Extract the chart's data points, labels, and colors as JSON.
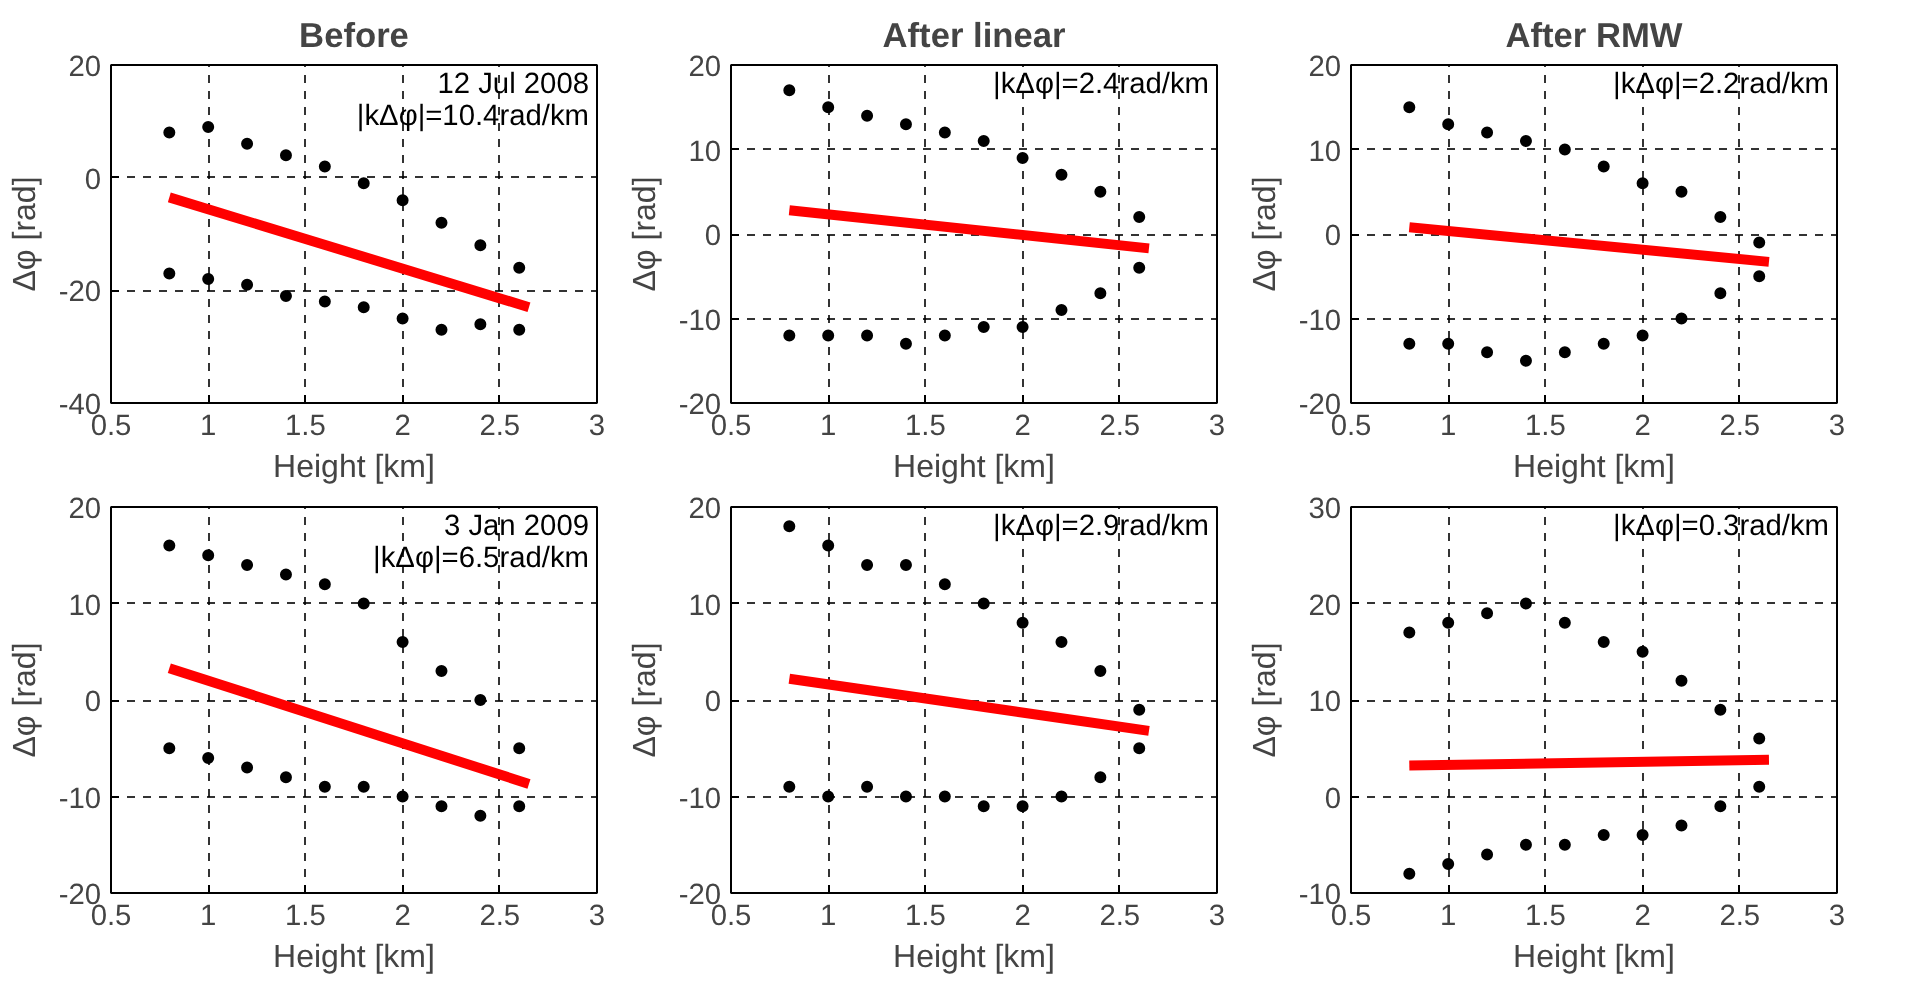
{
  "chart_data": [
    {
      "type": "scatter",
      "title": "Before",
      "xlabel": "Height [km]",
      "ylabel": "Δφ [rad]",
      "xlim": [
        0.5,
        3
      ],
      "xticks": [
        0.5,
        1,
        1.5,
        2,
        2.5,
        3
      ],
      "ylim": [
        -40,
        20
      ],
      "yticks": [
        -40,
        -20,
        0,
        20
      ],
      "grid": true,
      "annotations": [
        "12 Jul 2008",
        "|kΔφ|=10.4rad/km"
      ],
      "series": [
        {
          "marker": "circle",
          "color": "#000000",
          "x": [
            0.8,
            1.0,
            1.2,
            1.4,
            1.6,
            1.8,
            2.0,
            2.2,
            2.4,
            2.6,
            0.8,
            1.0,
            1.2,
            1.4,
            1.6,
            1.8,
            2.0,
            2.2,
            2.4,
            2.6
          ],
          "values": [
            8,
            9,
            6,
            4,
            2,
            -1,
            -4,
            -8,
            -12,
            -16,
            -17,
            -18,
            -19,
            -21,
            -22,
            -23,
            -25,
            -27,
            -26,
            -27
          ]
        },
        {
          "type": "line",
          "color": "#ff0000",
          "x": [
            0.8,
            2.65
          ],
          "values": [
            -3.5,
            -23
          ]
        }
      ]
    },
    {
      "type": "scatter",
      "title": "After linear",
      "xlabel": "Height [km]",
      "ylabel": "Δφ [rad]",
      "xlim": [
        0.5,
        3
      ],
      "xticks": [
        0.5,
        1,
        1.5,
        2,
        2.5,
        3
      ],
      "ylim": [
        -20,
        20
      ],
      "yticks": [
        -20,
        -10,
        0,
        10,
        20
      ],
      "grid": true,
      "annotations": [
        "|kΔφ|=2.4rad/km"
      ],
      "series": [
        {
          "marker": "circle",
          "color": "#000000",
          "x": [
            0.8,
            1.0,
            1.2,
            1.4,
            1.6,
            1.8,
            2.0,
            2.2,
            2.4,
            2.6,
            0.8,
            1.0,
            1.2,
            1.4,
            1.6,
            1.8,
            2.0,
            2.2,
            2.4,
            2.6
          ],
          "values": [
            17,
            15,
            14,
            13,
            12,
            11,
            9,
            7,
            5,
            2,
            -12,
            -12,
            -12,
            -13,
            -12,
            -11,
            -11,
            -9,
            -7,
            -4
          ]
        },
        {
          "type": "line",
          "color": "#ff0000",
          "x": [
            0.8,
            2.65
          ],
          "values": [
            2.8,
            -1.7
          ]
        }
      ]
    },
    {
      "type": "scatter",
      "title": "After RMW",
      "xlabel": "Height [km]",
      "ylabel": "Δφ [rad]",
      "xlim": [
        0.5,
        3
      ],
      "xticks": [
        0.5,
        1,
        1.5,
        2,
        2.5,
        3
      ],
      "ylim": [
        -20,
        20
      ],
      "yticks": [
        -20,
        -10,
        0,
        10,
        20
      ],
      "grid": true,
      "annotations": [
        "|kΔφ|=2.2rad/km"
      ],
      "series": [
        {
          "marker": "circle",
          "color": "#000000",
          "x": [
            0.8,
            1.0,
            1.2,
            1.4,
            1.6,
            1.8,
            2.0,
            2.2,
            2.4,
            2.6,
            0.8,
            1.0,
            1.2,
            1.4,
            1.6,
            1.8,
            2.0,
            2.2,
            2.4,
            2.6
          ],
          "values": [
            15,
            13,
            12,
            11,
            10,
            8,
            6,
            5,
            2,
            -1,
            -13,
            -13,
            -14,
            -15,
            -14,
            -13,
            -12,
            -10,
            -7,
            -5
          ]
        },
        {
          "type": "line",
          "color": "#ff0000",
          "x": [
            0.8,
            2.65
          ],
          "values": [
            0.8,
            -3.3
          ]
        }
      ]
    },
    {
      "type": "scatter",
      "xlabel": "Height [km]",
      "ylabel": "Δφ [rad]",
      "xlim": [
        0.5,
        3
      ],
      "xticks": [
        0.5,
        1,
        1.5,
        2,
        2.5,
        3
      ],
      "ylim": [
        -20,
        20
      ],
      "yticks": [
        -20,
        -10,
        0,
        10,
        20
      ],
      "grid": true,
      "annotations": [
        "3 Jan 2009",
        "|kΔφ|=6.5rad/km"
      ],
      "series": [
        {
          "marker": "circle",
          "color": "#000000",
          "x": [
            0.8,
            1.0,
            1.2,
            1.4,
            1.6,
            1.8,
            2.0,
            2.2,
            2.4,
            2.6,
            0.8,
            1.0,
            1.2,
            1.4,
            1.6,
            1.8,
            2.0,
            2.2,
            2.4,
            2.6
          ],
          "values": [
            16,
            15,
            14,
            13,
            12,
            10,
            6,
            3,
            0,
            -5,
            -5,
            -6,
            -7,
            -8,
            -9,
            -9,
            -10,
            -11,
            -12,
            -11
          ]
        },
        {
          "type": "line",
          "color": "#ff0000",
          "x": [
            0.8,
            2.65
          ],
          "values": [
            3.3,
            -8.7
          ]
        }
      ]
    },
    {
      "type": "scatter",
      "xlabel": "Height [km]",
      "ylabel": "Δφ [rad]",
      "xlim": [
        0.5,
        3
      ],
      "xticks": [
        0.5,
        1,
        1.5,
        2,
        2.5,
        3
      ],
      "ylim": [
        -20,
        20
      ],
      "yticks": [
        -20,
        -10,
        0,
        10,
        20
      ],
      "grid": true,
      "annotations": [
        "|kΔφ|=2.9rad/km"
      ],
      "series": [
        {
          "marker": "circle",
          "color": "#000000",
          "x": [
            0.8,
            1.0,
            1.2,
            1.4,
            1.6,
            1.8,
            2.0,
            2.2,
            2.4,
            2.6,
            0.8,
            1.0,
            1.2,
            1.4,
            1.6,
            1.8,
            2.0,
            2.2,
            2.4,
            2.6
          ],
          "values": [
            18,
            16,
            14,
            14,
            12,
            10,
            8,
            6,
            3,
            -1,
            -9,
            -10,
            -9,
            -10,
            -10,
            -11,
            -11,
            -10,
            -8,
            -5
          ]
        },
        {
          "type": "line",
          "color": "#ff0000",
          "x": [
            0.8,
            2.65
          ],
          "values": [
            2.2,
            -3.2
          ]
        }
      ]
    },
    {
      "type": "scatter",
      "xlabel": "Height [km]",
      "ylabel": "Δφ [rad]",
      "xlim": [
        0.5,
        3
      ],
      "xticks": [
        0.5,
        1,
        1.5,
        2,
        2.5,
        3
      ],
      "ylim": [
        -10,
        30
      ],
      "yticks": [
        -10,
        0,
        10,
        20,
        30
      ],
      "grid": true,
      "annotations": [
        "|kΔφ|=0.3rad/km"
      ],
      "series": [
        {
          "marker": "circle",
          "color": "#000000",
          "x": [
            0.8,
            1.0,
            1.2,
            1.4,
            1.6,
            1.8,
            2.0,
            2.2,
            2.4,
            2.6,
            0.8,
            1.0,
            1.2,
            1.4,
            1.6,
            1.8,
            2.0,
            2.2,
            2.4,
            2.6
          ],
          "values": [
            17,
            18,
            19,
            20,
            18,
            16,
            15,
            12,
            9,
            6,
            -8,
            -7,
            -6,
            -5,
            -5,
            -4,
            -4,
            -3,
            -1,
            1
          ]
        },
        {
          "type": "line",
          "color": "#ff0000",
          "x": [
            0.8,
            2.65
          ],
          "values": [
            3.2,
            3.8
          ]
        }
      ]
    }
  ]
}
